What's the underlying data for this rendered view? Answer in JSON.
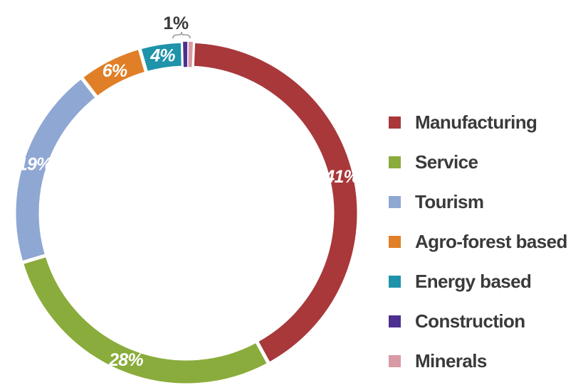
{
  "chart_data": {
    "type": "pie",
    "variant": "donut",
    "categories": [
      "Manufacturing",
      "Service",
      "Tourism",
      "Agro-forest based",
      "Energy based",
      "Construction",
      "Minerals"
    ],
    "values": [
      41,
      28,
      19,
      6,
      4,
      0.5,
      0.5
    ],
    "data_labels": [
      "41%",
      "28%",
      "19%",
      "6%",
      "4%",
      "",
      ""
    ],
    "small_slices_label": "1%",
    "colors": [
      "#a8383a",
      "#8aac3c",
      "#8fa7d3",
      "#e07f27",
      "#1e93aa",
      "#4c2f8e",
      "#d89aa4"
    ],
    "label_colors": [
      "#ffffff",
      "#ffffff",
      "#ffffff",
      "#ffffff",
      "#ffffff",
      "",
      ""
    ],
    "legend_position": "right"
  }
}
